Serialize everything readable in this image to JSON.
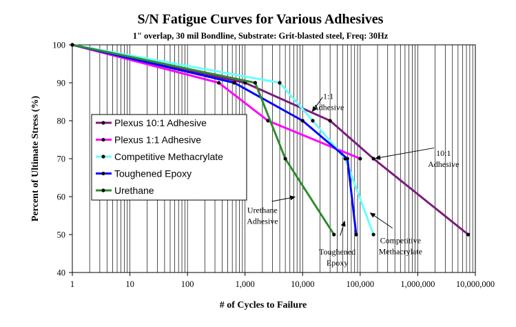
{
  "chart_data": {
    "type": "line",
    "title": "S/N Fatigue Curves for Various Adhesives",
    "subtitle": "1\" overlap, 30 mil Bondline, Substrate: Grit-blasted steel, Freq: 30Hz",
    "xlabel": "# of Cycles to Failure",
    "ylabel": "Percent of Ultimate Stress (%)",
    "x_scale": "log",
    "xlim": [
      1,
      10000000
    ],
    "ylim": [
      40,
      100
    ],
    "x_ticks": [
      "1",
      "10",
      "100",
      "1,000",
      "10,000",
      "100,000",
      "1,000,000",
      "10,000,000"
    ],
    "y_ticks": [
      "40",
      "50",
      "60",
      "70",
      "80",
      "90",
      "100"
    ],
    "grid": "vertical log grid",
    "legend_position": "left-middle",
    "series": [
      {
        "name": "Plexus 10:1 Adhesive",
        "color": "#7b1a7b",
        "points": [
          [
            1,
            100
          ],
          [
            1000,
            90
          ],
          [
            30000,
            80
          ],
          [
            170000,
            70
          ],
          [
            7500000,
            50
          ]
        ]
      },
      {
        "name": "Plexus 1:1 Adhesive",
        "color": "#ff00ff",
        "points": [
          [
            1,
            100
          ],
          [
            350,
            90
          ],
          [
            2500,
            80
          ],
          [
            100000,
            70
          ]
        ]
      },
      {
        "name": "Competitive Methacrylate",
        "color": "#66ffff",
        "points": [
          [
            1,
            100
          ],
          [
            4000,
            90
          ],
          [
            15000,
            80
          ],
          [
            55000,
            70
          ],
          [
            170000,
            50
          ]
        ]
      },
      {
        "name": "Toughened Epoxy",
        "color": "#0000ff",
        "points": [
          [
            1,
            100
          ],
          [
            650,
            90
          ],
          [
            10000,
            80
          ],
          [
            60000,
            70
          ],
          [
            85000,
            50
          ]
        ]
      },
      {
        "name": "Urethane",
        "color": "#2e8b2e",
        "points": [
          [
            1,
            100
          ],
          [
            1500,
            90
          ],
          [
            5000,
            70
          ],
          [
            35000,
            50
          ]
        ]
      }
    ],
    "annotations": [
      {
        "lines": [
          "1:1",
          "Adhesive"
        ],
        "ax": 14000,
        "ay": 82,
        "tx": 28000,
        "ty": 85
      },
      {
        "lines": [
          "10:1",
          "Adhesive"
        ],
        "ax": 170000,
        "ay": 70,
        "tx": 2800000,
        "ty": 70
      },
      {
        "lines": [
          "Urethane",
          "Adhesive"
        ],
        "ax": 8000,
        "ay": 60,
        "tx": 2000,
        "ty": 55
      },
      {
        "lines": [
          "Toughened",
          "Epoxy"
        ],
        "ax": 55000,
        "ay": 54,
        "tx": 40000,
        "ty": 44
      },
      {
        "lines": [
          "Competitive",
          "Methacrylate"
        ],
        "ax": 140000,
        "ay": 56,
        "tx": 500000,
        "ty": 47
      }
    ]
  }
}
